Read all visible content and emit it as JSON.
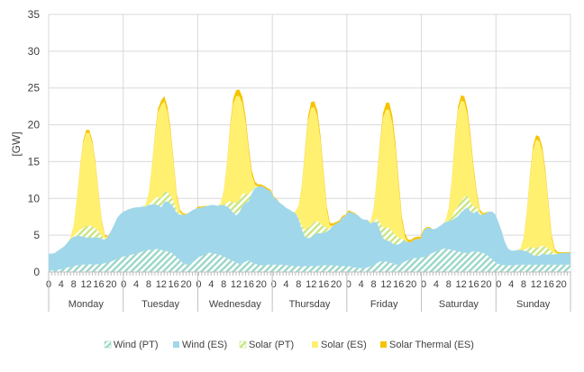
{
  "chart_data": {
    "type": "area",
    "stacked": true,
    "ylabel": "[GW]",
    "ylim": [
      0,
      35
    ],
    "yticks": [
      0,
      5,
      10,
      15,
      20,
      25,
      30,
      35
    ],
    "grid": true,
    "legend_position": "bottom",
    "days": [
      "Monday",
      "Tuesday",
      "Wednesday",
      "Thursday",
      "Friday",
      "Saturday",
      "Sunday"
    ],
    "hour_tick_labels": [
      "0",
      "4",
      "8",
      "12",
      "16",
      "20"
    ],
    "hours_per_day": 24,
    "series": [
      {
        "name": "Wind (PT)",
        "color": "#9ad7c8",
        "pattern": "hatch",
        "daily_values": [
          [
            0.2,
            0.2,
            0.2,
            0.3,
            0.4,
            0.5,
            0.6,
            0.7,
            0.8,
            0.9,
            1.0,
            1.0,
            1.0,
            1.1,
            1.0,
            1.0,
            1.1,
            1.1,
            1.2,
            1.3,
            1.4,
            1.6,
            1.8,
            2.0
          ],
          [
            2.1,
            2.2,
            2.3,
            2.4,
            2.5,
            2.6,
            2.8,
            2.9,
            3.0,
            3.0,
            3.1,
            3.1,
            3.0,
            2.9,
            2.8,
            2.7,
            2.4,
            2.0,
            1.6,
            1.2,
            1.0,
            1.1,
            1.3,
            1.6
          ],
          [
            2.0,
            2.2,
            2.4,
            2.6,
            2.6,
            2.5,
            2.4,
            2.3,
            2.1,
            1.9,
            1.7,
            1.5,
            1.3,
            1.1,
            1.2,
            1.4,
            1.6,
            1.3,
            1.1,
            1.0,
            0.9,
            0.9,
            1.0,
            1.0
          ],
          [
            1.0,
            1.0,
            1.0,
            1.0,
            0.9,
            0.9,
            0.8,
            0.8,
            0.8,
            0.7,
            0.8,
            0.8,
            0.8,
            0.8,
            0.8,
            0.9,
            0.9,
            0.9,
            0.9,
            0.9,
            0.9,
            0.8,
            0.8,
            0.8
          ],
          [
            0.8,
            0.7,
            0.6,
            0.6,
            0.5,
            0.5,
            0.6,
            0.8,
            1.0,
            1.2,
            1.4,
            1.5,
            1.4,
            1.3,
            1.2,
            1.0,
            1.0,
            1.2,
            1.4,
            1.6,
            1.8,
            1.9,
            1.9,
            2.0
          ],
          [
            2.0,
            2.2,
            2.4,
            2.6,
            2.8,
            3.0,
            3.1,
            3.2,
            3.1,
            3.0,
            2.9,
            2.8,
            2.7,
            2.6,
            2.6,
            2.7,
            2.8,
            2.8,
            2.7,
            2.6,
            2.4,
            2.1,
            1.7,
            1.3
          ],
          [
            1.1,
            1.0,
            0.9,
            0.9,
            0.9,
            0.9,
            1.0,
            1.0,
            1.0,
            1.0,
            1.0,
            1.0,
            1.0,
            1.0,
            1.0,
            1.0,
            1.0,
            1.0,
            1.0,
            1.0,
            1.0,
            1.0,
            1.0,
            1.0
          ]
        ]
      },
      {
        "name": "Wind (ES)",
        "color": "#a0d7ea",
        "pattern": "solid",
        "daily_values": [
          [
            2.3,
            2.3,
            2.4,
            2.6,
            2.8,
            3.0,
            3.4,
            3.8,
            4.0,
            4.0,
            3.9,
            3.8,
            3.7,
            3.6,
            3.7,
            3.7,
            3.6,
            3.4,
            3.2,
            3.5,
            4.2,
            4.9,
            5.6,
            5.9
          ],
          [
            6.1,
            6.2,
            6.3,
            6.3,
            6.3,
            6.2,
            6.1,
            6.0,
            6.1,
            6.2,
            6.1,
            6.0,
            5.8,
            6.6,
            6.8,
            6.6,
            6.4,
            6.0,
            6.2,
            6.6,
            6.8,
            7.0,
            7.1,
            7.0
          ],
          [
            6.7,
            6.6,
            6.5,
            6.4,
            6.5,
            6.6,
            6.6,
            6.8,
            7.0,
            7.0,
            6.9,
            6.6,
            6.4,
            7.0,
            7.8,
            8.0,
            8.0,
            9.4,
            10.3,
            10.6,
            10.8,
            10.6,
            10.2,
            10.0
          ],
          [
            9.2,
            8.8,
            8.4,
            8.1,
            7.8,
            7.6,
            7.4,
            7.2,
            6.4,
            5.1,
            4.0,
            3.8,
            3.9,
            4.3,
            4.5,
            4.4,
            4.4,
            4.6,
            4.9,
            5.4,
            5.7,
            6.0,
            6.6,
            6.9
          ],
          [
            7.4,
            7.4,
            7.3,
            7.1,
            6.8,
            6.6,
            6.5,
            5.8,
            5.8,
            5.6,
            4.3,
            3.1,
            2.9,
            2.9,
            2.7,
            2.7,
            2.8,
            2.8,
            2.9,
            2.4,
            2.3,
            2.5,
            2.6,
            2.5
          ],
          [
            3.6,
            3.8,
            3.6,
            3.2,
            3.1,
            3.2,
            3.4,
            3.6,
            3.8,
            4.0,
            4.4,
            4.8,
            5.4,
            5.9,
            6.2,
            5.5,
            5.2,
            5.5,
            5.1,
            5.2,
            5.6,
            6.1,
            6.5,
            6.5
          ],
          [
            5.6,
            4.5,
            3.2,
            2.3,
            2.0,
            2.0,
            2.0,
            2.0,
            1.9,
            1.8,
            1.6,
            1.3,
            1.2,
            1.2,
            1.5,
            1.4,
            1.4,
            1.4,
            1.4,
            1.5,
            1.6,
            1.6,
            1.6,
            1.6
          ]
        ]
      },
      {
        "name": "Solar (PT)",
        "color": "#c8e680",
        "pattern": "hatch",
        "daily_values": [
          [
            0.0,
            0.0,
            0.0,
            0.0,
            0.0,
            0.0,
            0.0,
            0.0,
            0.1,
            0.4,
            0.8,
            1.2,
            1.5,
            1.6,
            1.5,
            1.2,
            0.8,
            0.4,
            0.1,
            0.0,
            0.0,
            0.0,
            0.0,
            0.0
          ],
          [
            0.0,
            0.0,
            0.0,
            0.0,
            0.0,
            0.0,
            0.0,
            0.0,
            0.1,
            0.4,
            0.8,
            1.1,
            1.3,
            1.4,
            1.3,
            1.1,
            0.8,
            0.4,
            0.1,
            0.0,
            0.0,
            0.0,
            0.0,
            0.0
          ],
          [
            0.0,
            0.0,
            0.0,
            0.0,
            0.0,
            0.0,
            0.0,
            0.0,
            0.1,
            0.5,
            1.0,
            1.4,
            1.6,
            1.7,
            1.6,
            1.3,
            0.9,
            0.5,
            0.1,
            0.0,
            0.0,
            0.0,
            0.0,
            0.0
          ],
          [
            0.0,
            0.0,
            0.0,
            0.0,
            0.0,
            0.0,
            0.0,
            0.0,
            0.1,
            0.5,
            1.0,
            1.4,
            1.6,
            1.7,
            1.6,
            1.3,
            0.9,
            0.5,
            0.1,
            0.0,
            0.0,
            0.0,
            0.0,
            0.0
          ],
          [
            0.0,
            0.0,
            0.0,
            0.0,
            0.0,
            0.0,
            0.0,
            0.0,
            0.1,
            0.5,
            1.0,
            1.5,
            1.7,
            1.8,
            1.6,
            1.3,
            0.9,
            0.5,
            0.1,
            0.0,
            0.0,
            0.0,
            0.0,
            0.0
          ],
          [
            0.0,
            0.0,
            0.0,
            0.0,
            0.0,
            0.0,
            0.0,
            0.0,
            0.1,
            0.5,
            1.0,
            1.4,
            1.6,
            1.7,
            1.6,
            1.3,
            0.9,
            0.5,
            0.1,
            0.0,
            0.0,
            0.0,
            0.0,
            0.0
          ],
          [
            0.0,
            0.0,
            0.0,
            0.0,
            0.0,
            0.0,
            0.0,
            0.0,
            0.1,
            0.4,
            0.8,
            1.0,
            1.1,
            1.2,
            1.1,
            1.0,
            0.8,
            0.4,
            0.1,
            0.0,
            0.0,
            0.0,
            0.0,
            0.0
          ]
        ]
      },
      {
        "name": "Solar (ES)",
        "color": "#fff070",
        "pattern": "solid",
        "daily_values": [
          [
            0.0,
            0.0,
            0.0,
            0.0,
            0.0,
            0.0,
            0.0,
            0.2,
            1.5,
            4.5,
            8.3,
            11.5,
            12.7,
            12.6,
            11.2,
            8.6,
            5.0,
            1.8,
            0.3,
            0.0,
            0.0,
            0.0,
            0.0,
            0.0
          ],
          [
            0.0,
            0.0,
            0.0,
            0.0,
            0.0,
            0.0,
            0.0,
            0.2,
            1.5,
            4.6,
            8.4,
            11.5,
            12.6,
            12.3,
            10.9,
            8.5,
            5.0,
            1.8,
            0.3,
            0.0,
            0.0,
            0.0,
            0.0,
            0.0
          ],
          [
            0.0,
            0.0,
            0.0,
            0.0,
            0.0,
            0.0,
            0.0,
            0.2,
            1.6,
            5.0,
            9.6,
            13.3,
            14.6,
            14.1,
            12.3,
            9.7,
            6.0,
            2.0,
            0.4,
            0.0,
            0.0,
            0.0,
            0.0,
            0.0
          ],
          [
            0.0,
            0.0,
            0.0,
            0.0,
            0.0,
            0.0,
            0.0,
            0.2,
            1.6,
            5.2,
            10.2,
            14.5,
            16.0,
            15.6,
            14.2,
            11.2,
            6.8,
            2.4,
            0.4,
            0.0,
            0.0,
            0.0,
            0.0,
            0.0
          ],
          [
            0.0,
            0.0,
            0.0,
            0.0,
            0.0,
            0.0,
            0.0,
            0.2,
            1.6,
            5.2,
            10.4,
            14.8,
            16.1,
            16.0,
            14.7,
            11.6,
            7.0,
            2.5,
            0.4,
            0.0,
            0.0,
            0.0,
            0.0,
            0.0
          ],
          [
            0.0,
            0.0,
            0.0,
            0.0,
            0.0,
            0.0,
            0.0,
            0.2,
            1.5,
            4.8,
            9.6,
            13.0,
            13.6,
            12.9,
            11.0,
            8.5,
            4.8,
            1.6,
            0.3,
            0.0,
            0.0,
            0.0,
            0.0,
            0.0
          ],
          [
            0.0,
            0.0,
            0.0,
            0.0,
            0.0,
            0.0,
            0.0,
            0.2,
            1.5,
            4.7,
            9.4,
            13.3,
            14.7,
            14.4,
            12.8,
            9.8,
            5.6,
            1.8,
            0.3,
            0.0,
            0.0,
            0.0,
            0.0,
            0.0
          ]
        ]
      },
      {
        "name": "Solar Thermal (ES)",
        "color": "#f5c400",
        "pattern": "solid",
        "daily_values": [
          [
            0.0,
            0.0,
            0.0,
            0.0,
            0.0,
            0.0,
            0.0,
            0.0,
            0.0,
            0.1,
            0.2,
            0.3,
            0.4,
            0.4,
            0.4,
            0.4,
            0.3,
            0.3,
            0.2,
            0.1,
            0.0,
            0.0,
            0.0,
            0.0
          ],
          [
            0.0,
            0.0,
            0.0,
            0.0,
            0.0,
            0.0,
            0.0,
            0.0,
            0.0,
            0.1,
            0.3,
            0.5,
            0.6,
            0.7,
            0.7,
            0.6,
            0.5,
            0.4,
            0.3,
            0.2,
            0.1,
            0.0,
            0.0,
            0.0
          ],
          [
            0.2,
            0.1,
            0.1,
            0.0,
            0.0,
            0.0,
            0.0,
            0.0,
            0.1,
            0.2,
            0.4,
            0.7,
            0.8,
            0.9,
            0.9,
            0.8,
            0.7,
            0.6,
            0.4,
            0.3,
            0.2,
            0.2,
            0.2,
            0.2
          ],
          [
            0.1,
            0.1,
            0.0,
            0.0,
            0.0,
            0.0,
            0.0,
            0.0,
            0.1,
            0.2,
            0.4,
            0.6,
            0.8,
            0.8,
            0.8,
            0.7,
            0.6,
            0.5,
            0.4,
            0.3,
            0.2,
            0.2,
            0.2,
            0.1
          ],
          [
            0.2,
            0.1,
            0.1,
            0.0,
            0.0,
            0.0,
            0.0,
            0.0,
            0.1,
            0.2,
            0.4,
            0.7,
            0.9,
            1.0,
            1.0,
            0.9,
            0.8,
            0.6,
            0.5,
            0.4,
            0.3,
            0.3,
            0.3,
            0.3
          ],
          [
            0.2,
            0.1,
            0.1,
            0.0,
            0.0,
            0.0,
            0.0,
            0.0,
            0.1,
            0.2,
            0.3,
            0.5,
            0.7,
            0.8,
            0.8,
            0.7,
            0.6,
            0.5,
            0.3,
            0.2,
            0.1,
            0.0,
            0.0,
            0.0
          ],
          [
            0.0,
            0.0,
            0.0,
            0.0,
            0.0,
            0.0,
            0.0,
            0.0,
            0.1,
            0.2,
            0.3,
            0.5,
            0.6,
            0.6,
            0.6,
            0.6,
            0.5,
            0.4,
            0.3,
            0.2,
            0.1,
            0.1,
            0.1,
            0.1
          ]
        ]
      }
    ]
  }
}
